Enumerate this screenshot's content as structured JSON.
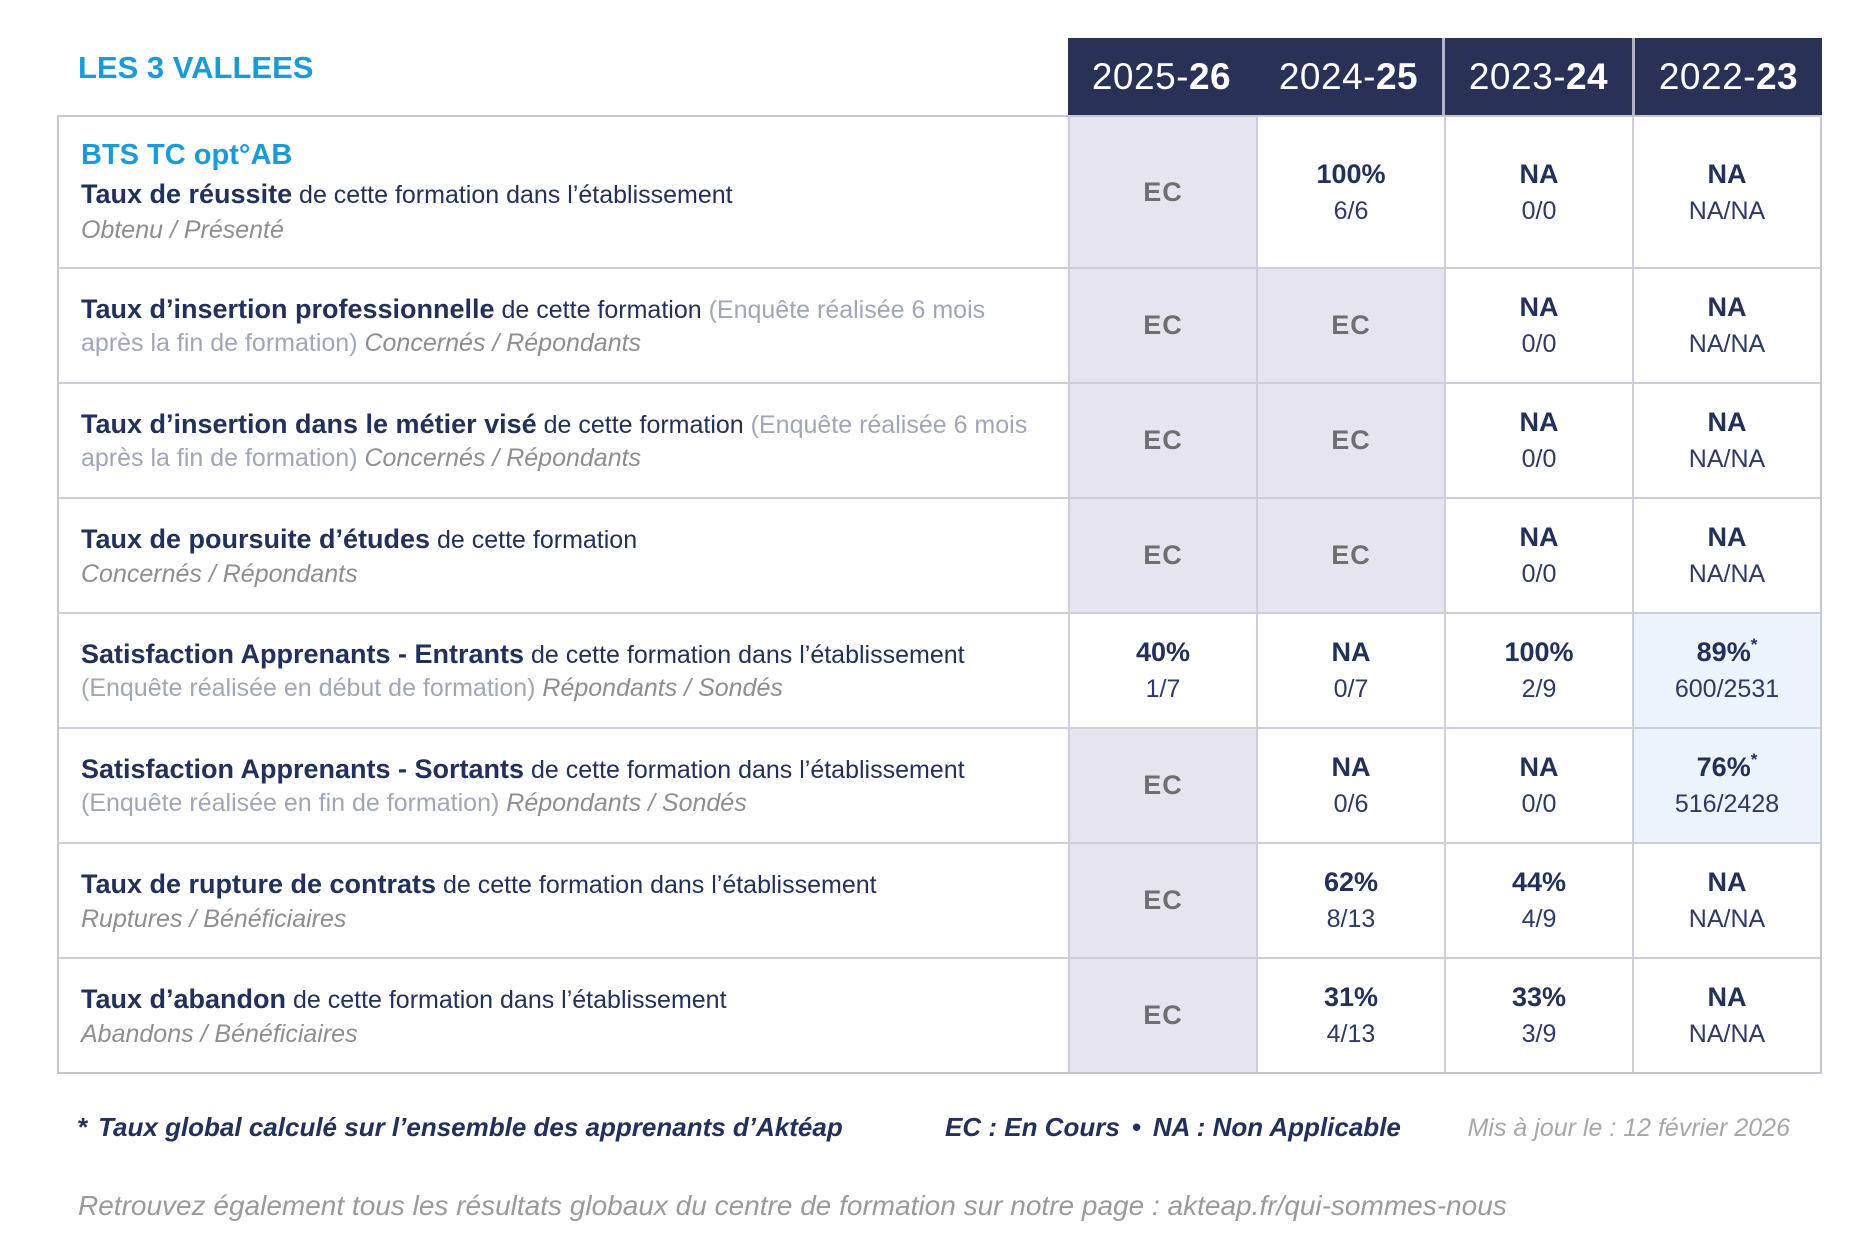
{
  "header": {
    "establishment": "LES 3 VALLEES",
    "columns": [
      {
        "base": "2025-",
        "bold": "26"
      },
      {
        "base": "2024-",
        "bold": "25"
      },
      {
        "base": "2023-",
        "bold": "24"
      },
      {
        "base": "2022-",
        "bold": "23"
      }
    ]
  },
  "table": {
    "rows": [
      {
        "label": {
          "course": "BTS TC opt°AB",
          "bold": "Taux de réussite",
          "normal": " de cette formation dans l’établissement",
          "sub": "Obtenu / Présenté"
        },
        "cells": [
          {
            "main": "EC"
          },
          {
            "main": "100%",
            "sub": "6/6"
          },
          {
            "main": "NA",
            "sub": "0/0"
          },
          {
            "main": "NA",
            "sub": "NA/NA"
          }
        ]
      },
      {
        "label": {
          "bold": "Taux d’insertion professionnelle",
          "normal": " de cette formation",
          "paren": " (Enquête réalisée 6 mois après la fin de formation)",
          "sub": " Concernés / Répondants"
        },
        "cells": [
          {
            "main": "EC"
          },
          {
            "main": "EC"
          },
          {
            "main": "NA",
            "sub": "0/0"
          },
          {
            "main": "NA",
            "sub": "NA/NA"
          }
        ]
      },
      {
        "label": {
          "bold": "Taux d’insertion dans le métier visé",
          "normal": " de cette formation",
          "paren": " (Enquête réalisée 6 mois après la fin de formation)",
          "sub": " Concernés / Répondants"
        },
        "cells": [
          {
            "main": "EC"
          },
          {
            "main": "EC"
          },
          {
            "main": "NA",
            "sub": "0/0"
          },
          {
            "main": "NA",
            "sub": "NA/NA"
          }
        ]
      },
      {
        "label": {
          "bold": "Taux de poursuite d’études",
          "normal": " de cette formation",
          "sub": "Concernés / Répondants"
        },
        "cells": [
          {
            "main": "EC"
          },
          {
            "main": "EC"
          },
          {
            "main": "NA",
            "sub": "0/0"
          },
          {
            "main": "NA",
            "sub": "NA/NA"
          }
        ]
      },
      {
        "label": {
          "bold": "Satisfaction Apprenants - Entrants",
          "normal": " de cette formation dans l’établissement",
          "paren": " (Enquête réalisée en début de formation)",
          "sub": " Répondants / Sondés"
        },
        "cells": [
          {
            "main": "40%",
            "sub": "1/7"
          },
          {
            "main": "NA",
            "sub": "0/7"
          },
          {
            "main": "100%",
            "sub": "2/9"
          },
          {
            "main": "89%",
            "star": "*",
            "sub": "600/2531"
          }
        ]
      },
      {
        "label": {
          "bold": "Satisfaction Apprenants - Sortants",
          "normal": " de cette formation dans l’établissement",
          "paren": " (Enquête réalisée en fin de formation)",
          "sub": " Répondants / Sondés"
        },
        "cells": [
          {
            "main": "EC"
          },
          {
            "main": "NA",
            "sub": "0/6"
          },
          {
            "main": "NA",
            "sub": "0/0"
          },
          {
            "main": "76%",
            "star": "*",
            "sub": "516/2428"
          }
        ]
      },
      {
        "label": {
          "bold": "Taux de rupture de contrats",
          "normal": " de cette formation dans l’établissement",
          "sub": "Ruptures / Bénéficiaires"
        },
        "cells": [
          {
            "main": "EC"
          },
          {
            "main": "62%",
            "sub": "8/13"
          },
          {
            "main": "44%",
            "sub": "4/9"
          },
          {
            "main": "NA",
            "sub": "NA/NA"
          }
        ]
      },
      {
        "label": {
          "bold": "Taux d’abandon",
          "normal": " de cette formation dans l’établissement",
          "sub": "Abandons / Bénéficiaires"
        },
        "cells": [
          {
            "main": "EC"
          },
          {
            "main": "31%",
            "sub": "4/13"
          },
          {
            "main": "33%",
            "sub": "3/9"
          },
          {
            "main": "NA",
            "sub": "NA/NA"
          }
        ]
      }
    ]
  },
  "footer": {
    "star": "*",
    "note": "Taux global calculé sur l’ensemble des apprenants d’Aktéap",
    "legend_ec": "EC : En Cours",
    "legend_bullet": "•",
    "legend_na": "NA : Non Applicable",
    "updated": "Mis à jour le : 12 février 2026"
  },
  "bottom": {
    "text": "Retrouvez également tous les résultats globaux du centre de formation sur notre page : ",
    "url": "akteap.fr/qui-sommes-nous"
  },
  "colors": {
    "accent_blue": "#1b9ad8",
    "header_bg": "#2a3157",
    "navy_text": "#22305a",
    "ec_cell_bg": "#e6e5ef",
    "highlight_cell_bg": "#edf3fa"
  }
}
